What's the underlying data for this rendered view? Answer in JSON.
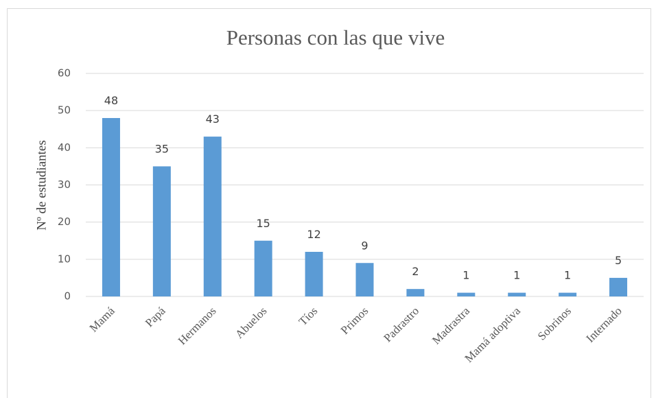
{
  "chart_data": {
    "type": "bar",
    "title": "Personas con las que vive",
    "y_label": "Nº de estudiantes",
    "categories": [
      "Mamá",
      "Papá",
      "Hermanos",
      "Abuelos",
      "Tíos",
      "Primos",
      "Padrastro",
      "Madrastra",
      "Mamá adoptiva",
      "Sobrinos",
      "Internado"
    ],
    "values": [
      48,
      35,
      43,
      15,
      12,
      9,
      2,
      1,
      1,
      1,
      5
    ],
    "color": "#5b9bd5",
    "ylim": [
      0,
      60
    ],
    "yticks": [
      0,
      10,
      20,
      30,
      40,
      50,
      60
    ],
    "grid": true
  }
}
